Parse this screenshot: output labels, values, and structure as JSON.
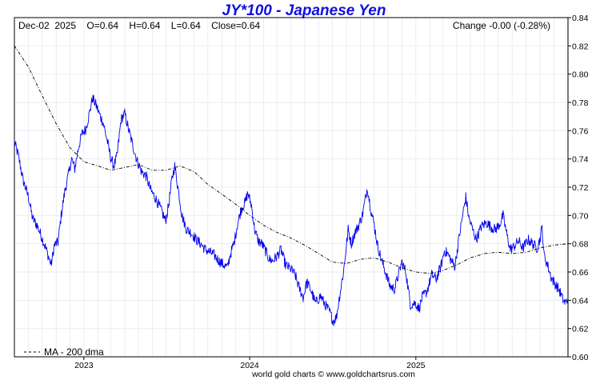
{
  "chart_data": {
    "type": "line",
    "title": "JY*100  -  Japanese Yen",
    "info_left": "Dec-02  2025    O=0.64    H=0.64    L=0.64    Close=0.64",
    "info_right": "Change -0.00 (-0.28%)",
    "credit": "world gold charts © www.goldchartsrus.com",
    "ylim": [
      0.6,
      0.84
    ],
    "y_ticks": [
      "0.60",
      "0.62",
      "0.64",
      "0.66",
      "0.68",
      "0.70",
      "0.72",
      "0.74",
      "0.76",
      "0.78",
      "0.80",
      "0.82",
      "0.84"
    ],
    "x_range": [
      "2022-08-01",
      "2025-12-02"
    ],
    "x_ticks": [
      {
        "label": "2023",
        "date": "2023-01-01"
      },
      {
        "label": "2024",
        "date": "2024-01-01"
      },
      {
        "label": "2025",
        "date": "2025-01-01"
      }
    ],
    "grid": true,
    "legend_position": "bottom-left",
    "series": [
      {
        "name": "",
        "style": "solid",
        "color": "#0000ee",
        "points": [
          [
            "2022-08-01",
            0.752
          ],
          [
            "2022-08-10",
            0.742
          ],
          [
            "2022-08-20",
            0.725
          ],
          [
            "2022-09-01",
            0.713
          ],
          [
            "2022-09-10",
            0.698
          ],
          [
            "2022-09-20",
            0.693
          ],
          [
            "2022-10-01",
            0.684
          ],
          [
            "2022-10-10",
            0.676
          ],
          [
            "2022-10-21",
            0.665
          ],
          [
            "2022-10-28",
            0.679
          ],
          [
            "2022-11-05",
            0.681
          ],
          [
            "2022-11-12",
            0.7
          ],
          [
            "2022-11-20",
            0.717
          ],
          [
            "2022-11-28",
            0.729
          ],
          [
            "2022-12-05",
            0.74
          ],
          [
            "2022-12-12",
            0.733
          ],
          [
            "2022-12-20",
            0.748
          ],
          [
            "2022-12-28",
            0.758
          ],
          [
            "2023-01-05",
            0.761
          ],
          [
            "2023-01-13",
            0.772
          ],
          [
            "2023-01-20",
            0.783
          ],
          [
            "2023-01-28",
            0.778
          ],
          [
            "2023-02-05",
            0.771
          ],
          [
            "2023-02-13",
            0.765
          ],
          [
            "2023-02-22",
            0.752
          ],
          [
            "2023-03-01",
            0.741
          ],
          [
            "2023-03-08",
            0.735
          ],
          [
            "2023-03-15",
            0.742
          ],
          [
            "2023-03-24",
            0.768
          ],
          [
            "2023-04-01",
            0.772
          ],
          [
            "2023-04-10",
            0.76
          ],
          [
            "2023-04-20",
            0.748
          ],
          [
            "2023-04-28",
            0.739
          ],
          [
            "2023-05-08",
            0.731
          ],
          [
            "2023-05-18",
            0.728
          ],
          [
            "2023-05-28",
            0.718
          ],
          [
            "2023-06-08",
            0.712
          ],
          [
            "2023-06-20",
            0.704
          ],
          [
            "2023-06-30",
            0.696
          ],
          [
            "2023-07-07",
            0.708
          ],
          [
            "2023-07-14",
            0.726
          ],
          [
            "2023-07-20",
            0.735
          ],
          [
            "2023-07-28",
            0.718
          ],
          [
            "2023-08-05",
            0.7
          ],
          [
            "2023-08-15",
            0.69
          ],
          [
            "2023-08-25",
            0.688
          ],
          [
            "2023-09-05",
            0.683
          ],
          [
            "2023-09-15",
            0.68
          ],
          [
            "2023-09-25",
            0.676
          ],
          [
            "2023-10-05",
            0.674
          ],
          [
            "2023-10-15",
            0.672
          ],
          [
            "2023-10-25",
            0.668
          ],
          [
            "2023-11-05",
            0.665
          ],
          [
            "2023-11-13",
            0.663
          ],
          [
            "2023-11-20",
            0.673
          ],
          [
            "2023-11-28",
            0.681
          ],
          [
            "2023-12-06",
            0.695
          ],
          [
            "2023-12-14",
            0.705
          ],
          [
            "2023-12-22",
            0.709
          ],
          [
            "2023-12-28",
            0.716
          ],
          [
            "2024-01-05",
            0.707
          ],
          [
            "2024-01-12",
            0.69
          ],
          [
            "2024-01-20",
            0.682
          ],
          [
            "2024-01-28",
            0.68
          ],
          [
            "2024-02-05",
            0.675
          ],
          [
            "2024-02-13",
            0.669
          ],
          [
            "2024-02-21",
            0.668
          ],
          [
            "2024-03-01",
            0.671
          ],
          [
            "2024-03-10",
            0.676
          ],
          [
            "2024-03-20",
            0.665
          ],
          [
            "2024-04-01",
            0.662
          ],
          [
            "2024-04-10",
            0.658
          ],
          [
            "2024-04-20",
            0.648
          ],
          [
            "2024-04-28",
            0.642
          ],
          [
            "2024-05-06",
            0.653
          ],
          [
            "2024-05-15",
            0.647
          ],
          [
            "2024-05-25",
            0.638
          ],
          [
            "2024-06-05",
            0.643
          ],
          [
            "2024-06-15",
            0.637
          ],
          [
            "2024-06-25",
            0.632
          ],
          [
            "2024-07-03",
            0.625
          ],
          [
            "2024-07-10",
            0.628
          ],
          [
            "2024-07-18",
            0.645
          ],
          [
            "2024-07-26",
            0.661
          ],
          [
            "2024-08-05",
            0.69
          ],
          [
            "2024-08-12",
            0.68
          ],
          [
            "2024-08-20",
            0.688
          ],
          [
            "2024-08-28",
            0.693
          ],
          [
            "2024-09-05",
            0.7
          ],
          [
            "2024-09-12",
            0.712
          ],
          [
            "2024-09-16",
            0.72
          ],
          [
            "2024-09-24",
            0.704
          ],
          [
            "2024-10-01",
            0.694
          ],
          [
            "2024-10-08",
            0.68
          ],
          [
            "2024-10-15",
            0.671
          ],
          [
            "2024-10-25",
            0.661
          ],
          [
            "2024-11-05",
            0.65
          ],
          [
            "2024-11-15",
            0.648
          ],
          [
            "2024-11-22",
            0.656
          ],
          [
            "2024-12-01",
            0.667
          ],
          [
            "2024-12-10",
            0.66
          ],
          [
            "2024-12-20",
            0.637
          ],
          [
            "2024-12-31",
            0.638
          ],
          [
            "2025-01-08",
            0.634
          ],
          [
            "2025-01-15",
            0.642
          ],
          [
            "2025-01-25",
            0.646
          ],
          [
            "2025-02-05",
            0.658
          ],
          [
            "2025-02-15",
            0.655
          ],
          [
            "2025-02-25",
            0.664
          ],
          [
            "2025-03-05",
            0.675
          ],
          [
            "2025-03-12",
            0.673
          ],
          [
            "2025-03-20",
            0.668
          ],
          [
            "2025-03-28",
            0.664
          ],
          [
            "2025-04-05",
            0.682
          ],
          [
            "2025-04-14",
            0.7
          ],
          [
            "2025-04-21",
            0.713
          ],
          [
            "2025-04-28",
            0.698
          ],
          [
            "2025-05-06",
            0.69
          ],
          [
            "2025-05-14",
            0.683
          ],
          [
            "2025-05-25",
            0.692
          ],
          [
            "2025-06-05",
            0.695
          ],
          [
            "2025-06-15",
            0.692
          ],
          [
            "2025-06-25",
            0.69
          ],
          [
            "2025-07-05",
            0.694
          ],
          [
            "2025-07-12",
            0.7
          ],
          [
            "2025-07-20",
            0.687
          ],
          [
            "2025-07-28",
            0.676
          ],
          [
            "2025-08-05",
            0.678
          ],
          [
            "2025-08-15",
            0.682
          ],
          [
            "2025-08-25",
            0.677
          ],
          [
            "2025-09-05",
            0.683
          ],
          [
            "2025-09-15",
            0.68
          ],
          [
            "2025-09-25",
            0.677
          ],
          [
            "2025-10-01",
            0.683
          ],
          [
            "2025-10-06",
            0.692
          ],
          [
            "2025-10-10",
            0.672
          ],
          [
            "2025-10-18",
            0.665
          ],
          [
            "2025-10-26",
            0.656
          ],
          [
            "2025-11-05",
            0.651
          ],
          [
            "2025-11-13",
            0.647
          ],
          [
            "2025-11-20",
            0.641
          ],
          [
            "2025-11-26",
            0.638
          ],
          [
            "2025-12-02",
            0.641
          ]
        ]
      },
      {
        "name": "MA - 200 dma",
        "style": "dashdot",
        "color": "#000000",
        "points": [
          [
            "2022-08-01",
            0.82
          ],
          [
            "2022-09-01",
            0.805
          ],
          [
            "2022-10-01",
            0.785
          ],
          [
            "2022-11-01",
            0.765
          ],
          [
            "2022-12-01",
            0.748
          ],
          [
            "2023-01-01",
            0.738
          ],
          [
            "2023-02-01",
            0.735
          ],
          [
            "2023-03-01",
            0.732
          ],
          [
            "2023-04-01",
            0.734
          ],
          [
            "2023-05-01",
            0.736
          ],
          [
            "2023-06-01",
            0.732
          ],
          [
            "2023-07-01",
            0.732
          ],
          [
            "2023-08-01",
            0.735
          ],
          [
            "2023-09-01",
            0.731
          ],
          [
            "2023-10-01",
            0.722
          ],
          [
            "2023-11-01",
            0.715
          ],
          [
            "2023-12-01",
            0.708
          ],
          [
            "2024-01-01",
            0.7
          ],
          [
            "2024-02-01",
            0.693
          ],
          [
            "2024-03-01",
            0.688
          ],
          [
            "2024-04-01",
            0.684
          ],
          [
            "2024-05-01",
            0.679
          ],
          [
            "2024-06-01",
            0.673
          ],
          [
            "2024-07-01",
            0.667
          ],
          [
            "2024-08-01",
            0.666
          ],
          [
            "2024-09-01",
            0.669
          ],
          [
            "2024-10-01",
            0.67
          ],
          [
            "2024-11-01",
            0.667
          ],
          [
            "2024-12-01",
            0.663
          ],
          [
            "2025-01-01",
            0.66
          ],
          [
            "2025-02-01",
            0.659
          ],
          [
            "2025-03-01",
            0.661
          ],
          [
            "2025-04-01",
            0.665
          ],
          [
            "2025-05-01",
            0.67
          ],
          [
            "2025-06-01",
            0.673
          ],
          [
            "2025-07-01",
            0.674
          ],
          [
            "2025-08-01",
            0.673
          ],
          [
            "2025-09-01",
            0.674
          ],
          [
            "2025-10-01",
            0.677
          ],
          [
            "2025-11-01",
            0.679
          ],
          [
            "2025-12-02",
            0.68
          ]
        ]
      }
    ],
    "legend": [
      {
        "label": "MA - 200 dma",
        "style": "dashdot"
      }
    ]
  }
}
